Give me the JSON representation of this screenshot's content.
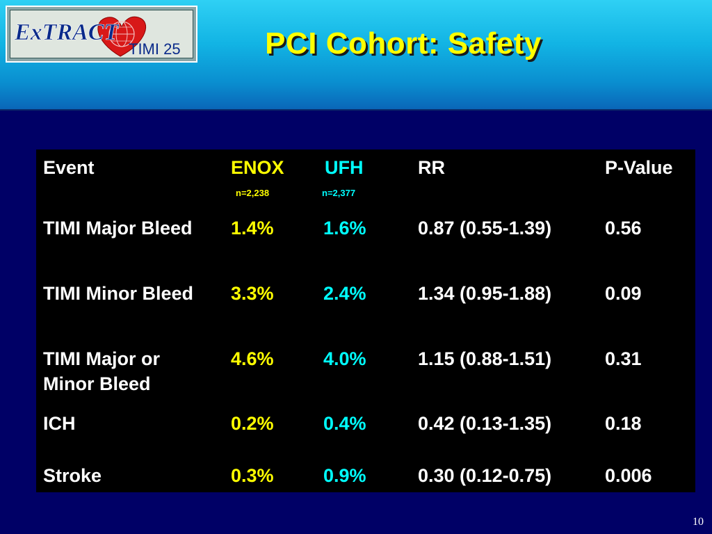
{
  "logo": {
    "brand_text": "ExTRACT",
    "sub_text": "TIMI 25"
  },
  "title": "PCI Cohort: Safety",
  "colors": {
    "background": "#000066",
    "header_gradient_top": "#2fd0f4",
    "header_gradient_bottom": "#0a66b8",
    "title": "#ffff00",
    "enox": "#ffff00",
    "ufh": "#00ffff",
    "text": "#ffffff",
    "table_bg": "#000000"
  },
  "table": {
    "headers": {
      "event": "Event",
      "enox": "ENOX",
      "ufh": "UFH",
      "rr": "RR",
      "pvalue": "P-Value"
    },
    "subheaders": {
      "enox_n": "n=2,238",
      "ufh_n": "n=2,377"
    },
    "rows": [
      {
        "event": "TIMI Major Bleed",
        "event_line2": "",
        "enox": "1.4%",
        "ufh": "1.6%",
        "rr": "0.87 (0.55-1.39)",
        "pvalue": "0.56"
      },
      {
        "event": "TIMI Minor Bleed",
        "event_line2": "",
        "enox": "3.3%",
        "ufh": "2.4%",
        "rr": "1.34 (0.95-1.88)",
        "pvalue": "0.09"
      },
      {
        "event": "TIMI Major or",
        "event_line2": "Minor Bleed",
        "enox": "4.6%",
        "ufh": "4.0%",
        "rr": "1.15 (0.88-1.51)",
        "pvalue": "0.31"
      },
      {
        "event": "ICH",
        "event_line2": "",
        "enox": "0.2%",
        "ufh": "0.4%",
        "rr": "0.42 (0.13-1.35)",
        "pvalue": "0.18"
      },
      {
        "event": "Stroke",
        "event_line2": "",
        "enox": "0.3%",
        "ufh": "0.9%",
        "rr": "0.30 (0.12-0.75)",
        "pvalue": "0.006"
      }
    ]
  },
  "page_number": "10"
}
